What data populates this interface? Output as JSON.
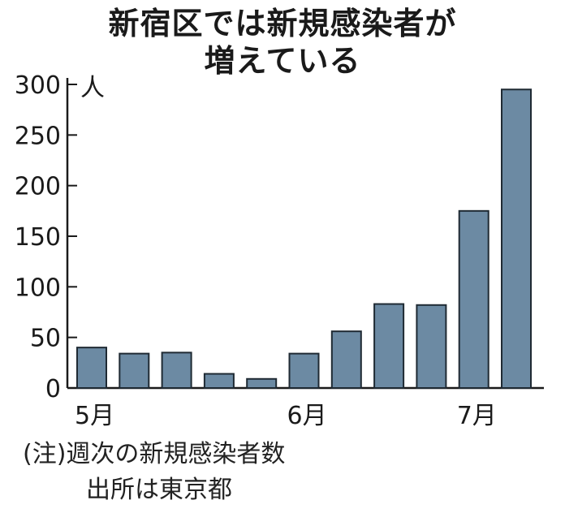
{
  "title_lines": [
    "新宿区では新規感染者が",
    "増えている"
  ],
  "note": "(注)週次の新規感染者数",
  "source": "出所は東京都",
  "chart_data": {
    "type": "bar",
    "title": "新宿区では新規感染者が増えている",
    "unit": "人",
    "categories": [
      "5月",
      "",
      "",
      "",
      "",
      "6月",
      "",
      "",
      "",
      "7月",
      ""
    ],
    "values": [
      40,
      34,
      35,
      14,
      9,
      34,
      56,
      83,
      82,
      175,
      295
    ],
    "ylim": [
      0,
      300
    ],
    "yticks": [
      0,
      50,
      100,
      150,
      200,
      250,
      300
    ],
    "grid": false,
    "colors": {
      "bar_fill": "#6c8aa3",
      "bar_stroke": "#1f2a33",
      "axis": "#1a1a1a"
    }
  }
}
